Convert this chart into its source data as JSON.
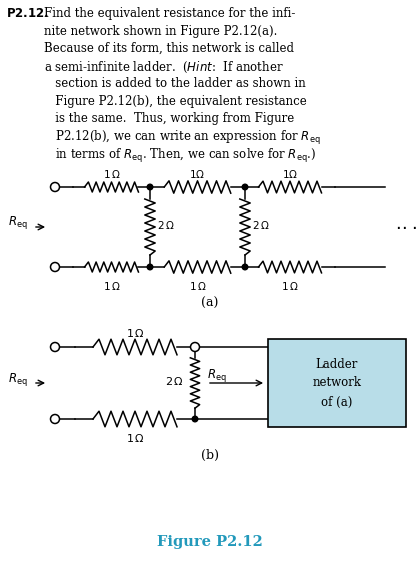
{
  "title": "Figure P2.12",
  "title_color": "#2299bb",
  "box_color": "#b8dde8",
  "box_text": "Ladder\nnetwork\nof (a)",
  "label_a": "(a)",
  "label_b": "(b)"
}
